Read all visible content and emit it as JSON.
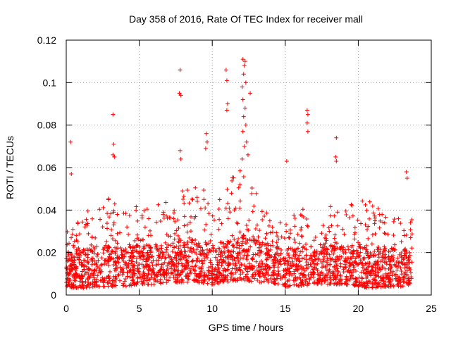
{
  "chart_data": {
    "type": "scatter",
    "title": "Day 358 of 2016, Rate Of TEC Index for receiver mall",
    "xlabel": "GPS time / hours",
    "ylabel": "ROTI / TECUs",
    "xlim": [
      0,
      25
    ],
    "ylim": [
      0,
      0.12
    ],
    "xticks": [
      0,
      5,
      10,
      15,
      20,
      25
    ],
    "xtick_labels": [
      "0",
      "5",
      "10",
      "15",
      "20",
      "25"
    ],
    "yticks": [
      0,
      0.02,
      0.04,
      0.06,
      0.08,
      0.1,
      0.12
    ],
    "ytick_labels": [
      "0",
      "0.02",
      "0.04",
      "0.06",
      "0.08",
      "0.1",
      "0.12"
    ],
    "grid": true,
    "marker": "+",
    "color": "#ff0000",
    "data_x_extent": [
      0,
      23.7
    ],
    "band_envelope": {
      "hours": [
        0,
        1,
        2,
        3,
        4,
        5,
        6,
        7,
        8,
        9,
        10,
        11,
        12,
        13,
        14,
        15,
        16,
        17,
        18,
        19,
        20,
        21,
        22,
        23,
        23.7
      ],
      "typical_max": [
        0.031,
        0.038,
        0.044,
        0.046,
        0.04,
        0.043,
        0.042,
        0.046,
        0.05,
        0.052,
        0.046,
        0.054,
        0.06,
        0.05,
        0.04,
        0.036,
        0.044,
        0.038,
        0.044,
        0.04,
        0.046,
        0.048,
        0.038,
        0.036,
        0.036
      ],
      "typical_min": [
        0.004,
        0.003,
        0.004,
        0.004,
        0.004,
        0.005,
        0.005,
        0.006,
        0.006,
        0.006,
        0.005,
        0.006,
        0.007,
        0.006,
        0.006,
        0.004,
        0.004,
        0.005,
        0.005,
        0.005,
        0.004,
        0.003,
        0.004,
        0.004,
        0.005
      ]
    },
    "outliers": [
      {
        "x": 0.3,
        "y": 0.072
      },
      {
        "x": 0.35,
        "y": 0.057
      },
      {
        "x": 3.2,
        "y": 0.085
      },
      {
        "x": 3.25,
        "y": 0.071
      },
      {
        "x": 3.2,
        "y": 0.066
      },
      {
        "x": 3.3,
        "y": 0.065
      },
      {
        "x": 7.8,
        "y": 0.106
      },
      {
        "x": 7.75,
        "y": 0.095
      },
      {
        "x": 7.85,
        "y": 0.094
      },
      {
        "x": 7.8,
        "y": 0.068
      },
      {
        "x": 7.85,
        "y": 0.064
      },
      {
        "x": 9.6,
        "y": 0.076
      },
      {
        "x": 9.65,
        "y": 0.072
      },
      {
        "x": 9.55,
        "y": 0.069
      },
      {
        "x": 10.95,
        "y": 0.106
      },
      {
        "x": 11.0,
        "y": 0.101
      },
      {
        "x": 11.05,
        "y": 0.09
      },
      {
        "x": 11.0,
        "y": 0.087
      },
      {
        "x": 12.1,
        "y": 0.111
      },
      {
        "x": 12.25,
        "y": 0.11
      },
      {
        "x": 12.2,
        "y": 0.108
      },
      {
        "x": 12.15,
        "y": 0.104
      },
      {
        "x": 12.3,
        "y": 0.1
      },
      {
        "x": 12.05,
        "y": 0.098
      },
      {
        "x": 12.6,
        "y": 0.095
      },
      {
        "x": 12.1,
        "y": 0.092
      },
      {
        "x": 12.25,
        "y": 0.088
      },
      {
        "x": 12.15,
        "y": 0.084
      },
      {
        "x": 12.3,
        "y": 0.08
      },
      {
        "x": 12.1,
        "y": 0.077
      },
      {
        "x": 12.35,
        "y": 0.072
      },
      {
        "x": 12.2,
        "y": 0.07
      },
      {
        "x": 12.45,
        "y": 0.066
      },
      {
        "x": 12.05,
        "y": 0.064
      },
      {
        "x": 16.5,
        "y": 0.087
      },
      {
        "x": 16.55,
        "y": 0.085
      },
      {
        "x": 16.5,
        "y": 0.081
      },
      {
        "x": 16.55,
        "y": 0.077
      },
      {
        "x": 18.5,
        "y": 0.074
      },
      {
        "x": 18.45,
        "y": 0.065
      },
      {
        "x": 18.5,
        "y": 0.063
      },
      {
        "x": 15.1,
        "y": 0.063
      },
      {
        "x": 23.3,
        "y": 0.058
      },
      {
        "x": 23.35,
        "y": 0.055
      }
    ]
  }
}
